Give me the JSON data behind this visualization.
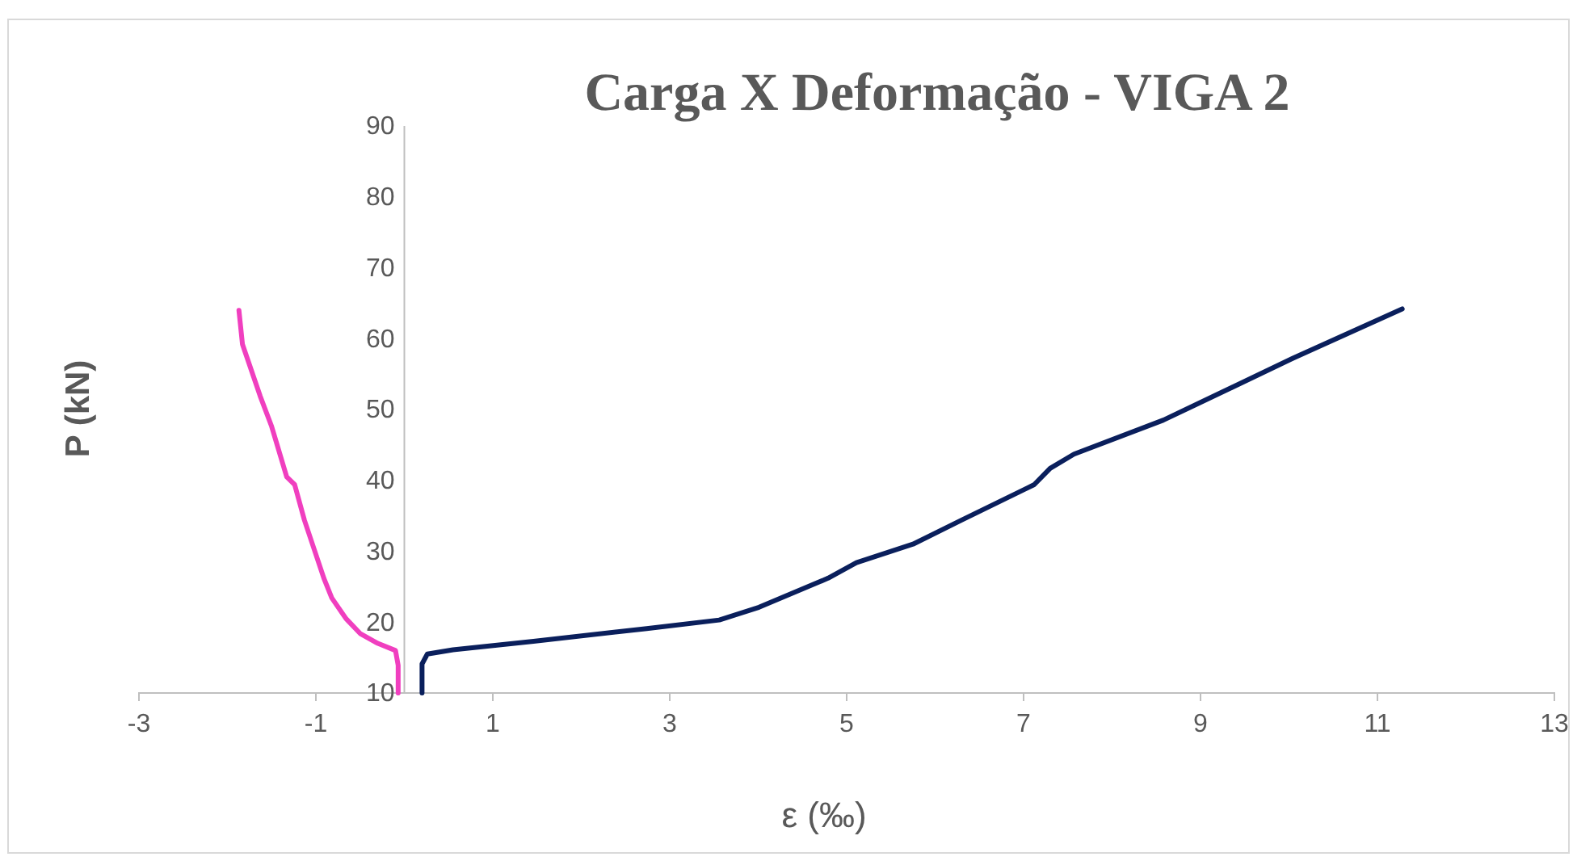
{
  "chart_data": {
    "type": "line",
    "title": "Carga X Deformação - VIGA 2",
    "xlabel": "ε (‰)",
    "ylabel": "P (kN)",
    "xlim": [
      -3,
      13
    ],
    "xticks": [
      -3,
      -1,
      1,
      3,
      5,
      7,
      9,
      11,
      13
    ],
    "ylim": [
      10,
      90
    ],
    "yticks": [
      10,
      20,
      30,
      40,
      50,
      60,
      70,
      80,
      90
    ],
    "grid": false,
    "marker": "none",
    "line_style": "solid",
    "series": [
      {
        "color": "#f03fbf",
        "x": [
          -0.07,
          -0.07,
          -0.1,
          -0.3,
          -0.5,
          -0.66,
          -0.82,
          -0.91,
          -1.02,
          -1.13,
          -1.24,
          -1.33,
          -1.5,
          -1.63,
          -1.83,
          -1.87
        ],
        "values": [
          10,
          13.9,
          16,
          17,
          18.4,
          20.5,
          23.4,
          26.2,
          30.3,
          34.4,
          39.4,
          40.5,
          47.6,
          51.9,
          59.2,
          64
        ]
      },
      {
        "color": "#0a1f5c",
        "x": [
          0.2,
          0.2,
          0.26,
          0.55,
          1.46,
          2.74,
          3.56,
          4.01,
          4.79,
          5.11,
          5.75,
          6.3,
          7.12,
          7.3,
          7.57,
          8.58,
          10.04,
          11.28
        ],
        "values": [
          10,
          14.1,
          15.5,
          16.1,
          17.3,
          19.1,
          20.3,
          22.1,
          26.2,
          28.4,
          31,
          34.4,
          39.4,
          41.7,
          43.7,
          48.5,
          57.2,
          64.2
        ]
      }
    ]
  }
}
